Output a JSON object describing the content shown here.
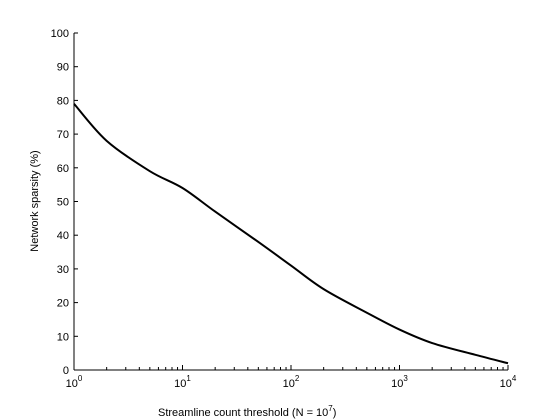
{
  "chart_data": {
    "type": "line",
    "title": "",
    "xlabel": "Streamline count threshold (N = 10",
    "xlabel_exponent": "7",
    "xlabel_suffix": ")",
    "ylabel": "Network sparsity (%)",
    "xscale": "log",
    "xlim": [
      1,
      10000
    ],
    "ylim": [
      0,
      100
    ],
    "xticks": [
      {
        "base": "10",
        "exp": "0",
        "value": 1
      },
      {
        "base": "10",
        "exp": "1",
        "value": 10
      },
      {
        "base": "10",
        "exp": "2",
        "value": 100
      },
      {
        "base": "10",
        "exp": "3",
        "value": 1000
      },
      {
        "base": "10",
        "exp": "4",
        "value": 10000
      }
    ],
    "yticks": [
      "0",
      "10",
      "20",
      "30",
      "40",
      "50",
      "60",
      "70",
      "80",
      "90",
      "100"
    ],
    "grid": false,
    "line_color": "#000000",
    "series": [
      {
        "x": [
          1,
          2,
          5,
          10,
          20,
          50,
          100,
          200,
          500,
          1000,
          2000,
          5000,
          10000
        ],
        "y": [
          79,
          68,
          59,
          54,
          47,
          38,
          31,
          24,
          17,
          12,
          8,
          4.5,
          2
        ]
      }
    ]
  }
}
